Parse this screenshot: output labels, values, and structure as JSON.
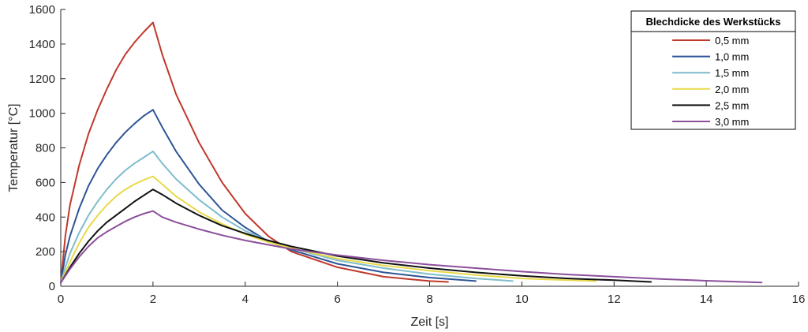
{
  "chart_data": {
    "type": "line",
    "title": "",
    "xlabel": "Zeit [s]",
    "ylabel": "Temperatur [°C]",
    "xlim": [
      0,
      16
    ],
    "ylim": [
      0,
      1600
    ],
    "x_ticks": [
      0,
      2,
      4,
      6,
      8,
      10,
      12,
      14,
      16
    ],
    "y_ticks": [
      0,
      200,
      400,
      600,
      800,
      1000,
      1200,
      1400,
      1600
    ],
    "grid": false,
    "legend": {
      "title": "Blechdicke des Werkstücks",
      "placement": "top-right"
    },
    "series": [
      {
        "name": "0,5 mm",
        "color": "#c0392b",
        "x": [
          0,
          0.1,
          0.2,
          0.4,
          0.6,
          0.8,
          1.0,
          1.2,
          1.4,
          1.6,
          1.8,
          2.0,
          2.2,
          2.5,
          3.0,
          3.5,
          4.0,
          4.5,
          5.0,
          6.0,
          7.0,
          8.0,
          8.4
        ],
        "y": [
          20,
          290,
          470,
          700,
          880,
          1020,
          1140,
          1250,
          1340,
          1410,
          1470,
          1525,
          1340,
          1110,
          830,
          600,
          420,
          290,
          200,
          110,
          55,
          30,
          25
        ]
      },
      {
        "name": "1,0 mm",
        "color": "#2e5496",
        "x": [
          0,
          0.1,
          0.2,
          0.4,
          0.6,
          0.8,
          1.0,
          1.2,
          1.4,
          1.6,
          1.8,
          2.0,
          2.2,
          2.5,
          3.0,
          3.5,
          4.0,
          4.5,
          5.0,
          6.0,
          7.0,
          8.0,
          9.0
        ],
        "y": [
          20,
          180,
          290,
          450,
          580,
          680,
          760,
          830,
          890,
          940,
          985,
          1020,
          920,
          780,
          590,
          440,
          340,
          260,
          210,
          130,
          80,
          50,
          30
        ]
      },
      {
        "name": "1,5 mm",
        "color": "#7fbccd",
        "x": [
          0,
          0.1,
          0.2,
          0.4,
          0.6,
          0.8,
          1.0,
          1.2,
          1.4,
          1.6,
          1.8,
          2.0,
          2.2,
          2.5,
          3.0,
          3.5,
          4.0,
          4.5,
          5.0,
          6.0,
          7.0,
          8.0,
          9.0,
          9.8
        ],
        "y": [
          20,
          110,
          190,
          310,
          410,
          490,
          560,
          620,
          670,
          710,
          745,
          780,
          710,
          620,
          500,
          400,
          320,
          265,
          220,
          150,
          105,
          70,
          45,
          30
        ]
      },
      {
        "name": "2,0 mm",
        "color": "#e8d94a",
        "x": [
          0,
          0.1,
          0.2,
          0.4,
          0.6,
          0.8,
          1.0,
          1.2,
          1.4,
          1.6,
          1.8,
          2.0,
          2.2,
          2.5,
          3.0,
          3.5,
          4.0,
          4.5,
          5.0,
          6.0,
          7.0,
          8.0,
          9.0,
          10.0,
          11.0,
          11.6
        ],
        "y": [
          20,
          80,
          140,
          250,
          340,
          410,
          470,
          520,
          560,
          590,
          615,
          635,
          590,
          520,
          430,
          360,
          300,
          255,
          220,
          160,
          120,
          90,
          65,
          45,
          35,
          30
        ]
      },
      {
        "name": "2,5 mm",
        "color": "#111111",
        "x": [
          0,
          0.2,
          0.4,
          0.6,
          0.8,
          1.0,
          1.2,
          1.4,
          1.6,
          1.8,
          2.0,
          2.2,
          2.5,
          3.0,
          3.5,
          4.0,
          4.5,
          5.0,
          6.0,
          7.0,
          8.0,
          9.0,
          10.0,
          11.0,
          12.0,
          12.8
        ],
        "y": [
          20,
          110,
          190,
          260,
          320,
          370,
          410,
          450,
          490,
          525,
          560,
          530,
          480,
          410,
          350,
          305,
          265,
          230,
          175,
          135,
          105,
          80,
          60,
          45,
          35,
          25
        ]
      },
      {
        "name": "3,0 mm",
        "color": "#8b4f9b",
        "x": [
          0,
          0.2,
          0.4,
          0.6,
          0.8,
          1.0,
          1.2,
          1.4,
          1.6,
          1.8,
          2.0,
          2.2,
          2.5,
          3.0,
          3.5,
          4.0,
          4.5,
          5.0,
          6.0,
          7.0,
          8.0,
          9.0,
          10.0,
          11.0,
          12.0,
          13.0,
          14.0,
          15.2
        ],
        "y": [
          20,
          100,
          170,
          230,
          280,
          315,
          345,
          375,
          400,
          420,
          435,
          400,
          370,
          330,
          295,
          265,
          240,
          215,
          180,
          150,
          125,
          105,
          85,
          68,
          55,
          42,
          32,
          22
        ]
      }
    ]
  }
}
